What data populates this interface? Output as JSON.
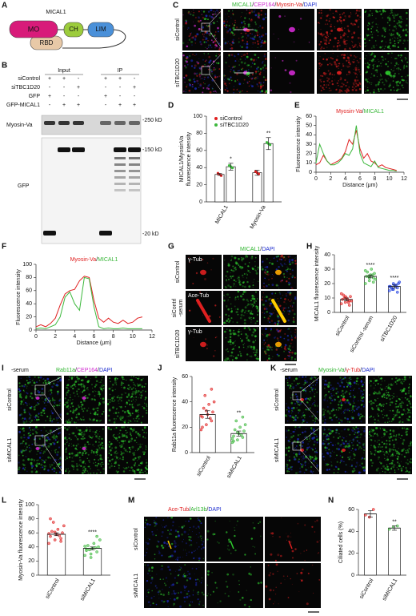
{
  "panel_letters": [
    "A",
    "B",
    "C",
    "D",
    "E",
    "F",
    "G",
    "H",
    "I",
    "J",
    "K",
    "L",
    "M",
    "N"
  ],
  "diagram_a": {
    "title": "MICAL1",
    "domains": [
      "MO",
      "CH",
      "LIM",
      "RBD"
    ]
  },
  "blot_b": {
    "headers": [
      "Input",
      "IP"
    ],
    "rows": [
      {
        "label": "siControl",
        "marks": [
          "+",
          "+",
          "-",
          "+",
          "+",
          "-"
        ]
      },
      {
        "label": "siTBC1D20",
        "marks": [
          "-",
          "-",
          "+",
          "-",
          "-",
          "+"
        ]
      },
      {
        "label": "GFP",
        "marks": [
          "+",
          "-",
          "-",
          "+",
          "-",
          "-"
        ]
      },
      {
        "label": "GFP-MICAL1",
        "marks": [
          "-",
          "+",
          "+",
          "-",
          "+",
          "+"
        ]
      }
    ],
    "bands": [
      "Myosin-Va",
      "GFP"
    ],
    "sizes": [
      "-250 kD",
      "-150 kD",
      "-20 kD"
    ]
  },
  "micro_c": {
    "title": [
      {
        "text": "MICAL1",
        "color": "#2fb52f"
      },
      {
        "text": "/",
        "color": "#222222"
      },
      {
        "text": "CEP164",
        "color": "#d02ad0"
      },
      {
        "text": "/",
        "color": "#222222"
      },
      {
        "text": "Myosin-Va",
        "color": "#e02020"
      },
      {
        "text": "/",
        "color": "#222222"
      },
      {
        "text": "DAPI",
        "color": "#2030d0"
      }
    ],
    "rows": [
      "siControl",
      "siTBC1D20"
    ]
  },
  "micro_g": {
    "title": [
      {
        "text": "MICAL1",
        "color": "#2fb52f"
      },
      {
        "text": "/",
        "color": "#222222"
      },
      {
        "text": "DAPI",
        "color": "#2030d0"
      }
    ],
    "rows": [
      [
        "siControl"
      ],
      [
        "siContrl",
        "-serum"
      ],
      [
        "siTBC1D20"
      ]
    ],
    "stains": [
      "γ-Tub",
      "Ace-Tub",
      "γ-Tub"
    ]
  },
  "micro_i": {
    "condition": "-serum",
    "title": [
      {
        "text": "Rab11a",
        "color": "#2fb52f"
      },
      {
        "text": "/",
        "color": "#222222"
      },
      {
        "text": "CEP164",
        "color": "#d02ad0"
      },
      {
        "text": "/",
        "color": "#222222"
      },
      {
        "text": "DAPI",
        "color": "#2030d0"
      }
    ],
    "rows": [
      "siControl",
      "siMICAL1"
    ]
  },
  "micro_k": {
    "condition": "-serum",
    "title": [
      {
        "text": "Myosin-Va",
        "color": "#2fb52f"
      },
      {
        "text": "/",
        "color": "#222222"
      },
      {
        "text": "γ-Tub",
        "color": "#e02020"
      },
      {
        "text": "/",
        "color": "#222222"
      },
      {
        "text": "DAPI",
        "color": "#2030d0"
      }
    ],
    "rows": [
      "siControl",
      "siMICAL1"
    ]
  },
  "micro_m": {
    "title": [
      {
        "text": "Ace-Tub",
        "color": "#e02020"
      },
      {
        "text": "/",
        "color": "#222222"
      },
      {
        "text": "Arl13b",
        "color": "#2fb52f"
      },
      {
        "text": "/",
        "color": "#222222"
      },
      {
        "text": "DAPI",
        "color": "#2030d0"
      }
    ],
    "rows": [
      "siControl",
      "siMICAL1"
    ]
  },
  "chart_data": [
    {
      "type": "bar",
      "ylabel": [
        "MICAL1/MyosinVa",
        "fluorescence intensity"
      ],
      "categories": [
        "MICAL1",
        "Myosin-Va"
      ],
      "series": [
        {
          "name": "siControl",
          "color": "#e02020",
          "values": [
            32,
            34
          ],
          "errors": [
            1,
            3
          ]
        },
        {
          "name": "siTBC1D20",
          "color": "#3cb83c",
          "values": [
            41,
            68
          ],
          "errors": [
            4,
            7
          ],
          "significance": [
            "*",
            "**"
          ]
        }
      ],
      "ylim": [
        0,
        100
      ],
      "yticks": [
        0,
        20,
        40,
        60,
        80,
        100
      ],
      "legend": "upper left"
    },
    {
      "type": "line",
      "title": [
        {
          "text": "Myosin-Va",
          "color": "#e02020"
        },
        {
          "text": "/",
          "color": "#222222"
        },
        {
          "text": "MICAL1",
          "color": "#3cb83c"
        }
      ],
      "xlabel": "Distance (μm)",
      "ylabel": "Fluorescence intensity",
      "x": [
        0,
        0.5,
        1,
        1.5,
        2,
        2.5,
        3,
        3.5,
        4,
        4.5,
        5,
        5.5,
        6,
        6.5,
        7,
        7.5,
        8,
        8.5,
        9,
        9.5,
        10,
        10.5,
        11
      ],
      "series": [
        {
          "name": "Myosin-Va",
          "color": "#e02020",
          "values": [
            8,
            10,
            18,
            12,
            8,
            10,
            12,
            15,
            22,
            35,
            30,
            45,
            25,
            15,
            20,
            12,
            10,
            6,
            8,
            5,
            4,
            3,
            2
          ]
        },
        {
          "name": "MICAL1",
          "color": "#3cb83c",
          "values": [
            10,
            30,
            20,
            12,
            8,
            8,
            10,
            14,
            20,
            18,
            25,
            50,
            20,
            10,
            8,
            6,
            12,
            5,
            4,
            3,
            2,
            2,
            1
          ]
        }
      ],
      "xlim": [
        0,
        12
      ],
      "xticks": [
        0,
        2,
        4,
        6,
        8,
        10,
        12
      ],
      "ylim": [
        0,
        60
      ],
      "yticks": [
        0,
        10,
        20,
        30,
        40,
        50,
        60
      ]
    },
    {
      "type": "line",
      "title": [
        {
          "text": "Myosin-Va",
          "color": "#e02020"
        },
        {
          "text": "/",
          "color": "#222222"
        },
        {
          "text": "MICAL1",
          "color": "#3cb83c"
        }
      ],
      "xlabel": "Distance (μm)",
      "ylabel": "Fluorescence intensity",
      "x": [
        0,
        0.5,
        1,
        1.5,
        2,
        2.5,
        3,
        3.5,
        4,
        4.5,
        5,
        5.5,
        6,
        6.5,
        7,
        7.5,
        8,
        8.5,
        9,
        9.5,
        10,
        10.5,
        11
      ],
      "series": [
        {
          "name": "Myosin-Va",
          "color": "#e02020",
          "values": [
            5,
            8,
            5,
            10,
            18,
            38,
            55,
            60,
            62,
            75,
            82,
            80,
            45,
            18,
            12,
            18,
            12,
            10,
            15,
            10,
            12,
            18,
            20
          ]
        },
        {
          "name": "MICAL1",
          "color": "#3cb83c",
          "values": [
            2,
            3,
            2,
            5,
            8,
            20,
            50,
            58,
            40,
            30,
            80,
            78,
            35,
            5,
            2,
            3,
            2,
            2,
            3,
            2,
            2,
            2,
            2
          ]
        }
      ],
      "xlim": [
        0,
        12
      ],
      "xticks": [
        0,
        2,
        4,
        6,
        8,
        10,
        12
      ],
      "ylim": [
        0,
        100
      ],
      "yticks": [
        0,
        20,
        40,
        60,
        80,
        100
      ]
    },
    {
      "type": "bar",
      "ylabel": [
        "MICAL1 fluorescence intensity"
      ],
      "categories": [
        "siControl",
        "siControl -serum",
        "siTBC1D20"
      ],
      "values": [
        9,
        25,
        18
      ],
      "errors": [
        1,
        1,
        1
      ],
      "significance": [
        null,
        "****",
        "****"
      ],
      "colors": [
        "#e02020",
        "#3cb83c",
        "#2040e0"
      ],
      "points": [
        [
          6,
          7,
          8,
          9,
          10,
          11,
          12,
          9,
          8,
          10,
          7,
          13,
          11,
          5
        ],
        [
          20,
          22,
          24,
          25,
          26,
          27,
          28,
          30,
          23,
          25,
          26,
          29,
          24,
          21
        ],
        [
          15,
          16,
          17,
          18,
          19,
          20,
          17,
          18,
          21,
          16,
          19,
          18,
          20,
          14
        ]
      ],
      "ylim": [
        0,
        40
      ],
      "yticks": [
        0,
        10,
        20,
        30,
        40
      ]
    },
    {
      "type": "bar",
      "ylabel": [
        "Rab11a fluorescence intensity"
      ],
      "categories": [
        "siControl",
        "siMICAL1"
      ],
      "values": [
        30,
        15
      ],
      "errors": [
        3,
        2
      ],
      "significance": [
        null,
        "**"
      ],
      "colors": [
        "#e02020",
        "#3cb83c"
      ],
      "points": [
        [
          18,
          22,
          25,
          28,
          30,
          32,
          35,
          38,
          40,
          45,
          27,
          29,
          33,
          50,
          20
        ],
        [
          8,
          10,
          12,
          13,
          15,
          17,
          18,
          20,
          22,
          25,
          14,
          11,
          16,
          28,
          9
        ]
      ],
      "ylim": [
        0,
        60
      ],
      "yticks": [
        0,
        20,
        40,
        60
      ]
    },
    {
      "type": "bar",
      "ylabel": [
        "Myosin-Va fluorescence intensity"
      ],
      "categories": [
        "siControl",
        "siMICAL1"
      ],
      "values": [
        58,
        38
      ],
      "errors": [
        2,
        2
      ],
      "significance": [
        null,
        "****"
      ],
      "colors": [
        "#e02020",
        "#3cb83c"
      ],
      "points": [
        [
          45,
          50,
          52,
          55,
          58,
          60,
          62,
          65,
          70,
          75,
          56,
          59,
          61,
          48,
          80
        ],
        [
          28,
          30,
          33,
          35,
          38,
          40,
          42,
          45,
          50,
          36,
          39,
          41,
          25,
          55,
          37
        ]
      ],
      "ylim": [
        0,
        100
      ],
      "yticks": [
        0,
        20,
        40,
        60,
        80,
        100
      ]
    },
    {
      "type": "bar",
      "ylabel": [
        "Ciliated cells (%)"
      ],
      "categories": [
        "siControl",
        "siMICAL1"
      ],
      "values": [
        56,
        43
      ],
      "errors": [
        3,
        2
      ],
      "significance": [
        null,
        "**"
      ],
      "colors": [
        "#e02020",
        "#3cb83c"
      ],
      "points": [
        [
          55,
          53,
          60
        ],
        [
          42,
          44,
          45
        ]
      ],
      "ylim": [
        0,
        60
      ],
      "yticks": [
        0,
        20,
        40,
        60
      ]
    }
  ]
}
